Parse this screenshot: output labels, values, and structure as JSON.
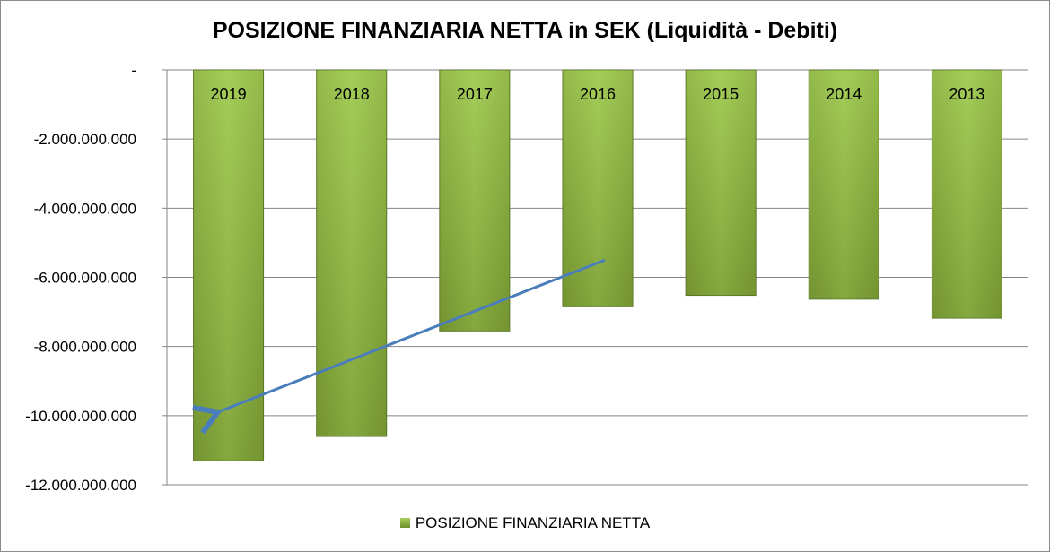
{
  "chart_data": {
    "type": "bar",
    "title": "POSIZIONE FINANZIARIA NETTA in SEK (Liquidità - Debiti)",
    "categories": [
      "2019",
      "2018",
      "2017",
      "2016",
      "2015",
      "2014",
      "2013"
    ],
    "series": [
      {
        "name": "POSIZIONE FINANZIARIA NETTA",
        "values": [
          -11300000000,
          -10600000000,
          -7550000000,
          -6850000000,
          -6520000000,
          -6630000000,
          -7180000000
        ]
      }
    ],
    "y_ticks": [
      "-",
      "-2.000.000.000",
      "-4.000.000.000",
      "-6.000.000.000",
      "-8.000.000.000",
      "-10.000.000.000",
      "-12.000.000.000"
    ],
    "ylim": [
      -12000000000,
      0
    ],
    "grid": true,
    "legend_position": "bottom",
    "colors": {
      "bar_top": "#a6d05a",
      "bar_bottom": "#6a8a2a",
      "arrow": "#4a7ebb"
    },
    "annotations": [
      {
        "type": "arrow",
        "from": {
          "category": "2016",
          "value": -5500000000
        },
        "to": {
          "category": "2019",
          "value": -9900000000
        }
      }
    ]
  }
}
